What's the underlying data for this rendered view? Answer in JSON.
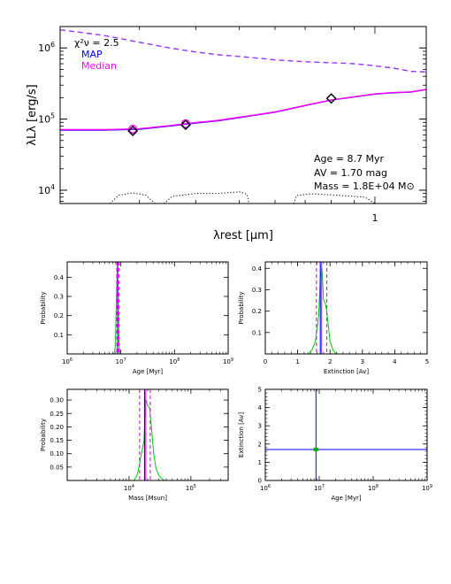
{
  "chart_data": [
    {
      "type": "line",
      "xscale": "log",
      "yscale": "log",
      "xlabel": "λrest [μm]",
      "ylabel": "λLλ [erg/s]",
      "xlim": [
        0.2,
        1.3
      ],
      "ylim": [
        6500,
        2000000
      ],
      "xtick_labels": [
        "1"
      ],
      "ytick_labels": [
        "10^4",
        "10^5",
        "10^6"
      ],
      "legend": {
        "chi2": "χ²ν = 2.5",
        "map_label": "MAP",
        "median_label": "Median"
      },
      "annotations": {
        "age": "Age = 8.7 Myr",
        "av": "AV = 1.70 mag",
        "mass": "Mass = 1.8E+04 M⊙"
      },
      "series": [
        {
          "name": "MAP",
          "color": "#0000ff",
          "style": "solid",
          "x": [
            0.2,
            0.25,
            0.3,
            0.35,
            0.4,
            0.45,
            0.5,
            0.55,
            0.6,
            0.7,
            0.8,
            0.9,
            1.0,
            1.1,
            1.2,
            1.3
          ],
          "y": [
            70000,
            70000,
            72000,
            80000,
            88000,
            95000,
            105000,
            115000,
            125000,
            155000,
            185000,
            205000,
            225000,
            235000,
            240000,
            260000
          ]
        },
        {
          "name": "Median",
          "color": "#ff00ff",
          "style": "solid",
          "x": [
            0.2,
            0.25,
            0.3,
            0.35,
            0.4,
            0.45,
            0.5,
            0.55,
            0.6,
            0.7,
            0.8,
            0.9,
            1.0,
            1.1,
            1.2,
            1.3
          ],
          "y": [
            71000,
            71000,
            73000,
            81000,
            89000,
            96000,
            106000,
            116000,
            126000,
            156000,
            186000,
            206000,
            226000,
            236000,
            241000,
            261000
          ]
        },
        {
          "color": "#9933ff",
          "style": "dashed",
          "x": [
            0.2,
            0.25,
            0.3,
            0.35,
            0.4,
            0.45,
            0.5,
            0.55,
            0.6,
            0.7,
            0.8,
            0.9,
            1.0,
            1.1,
            1.2,
            1.3
          ],
          "y": [
            1800000,
            1500000,
            1200000,
            1000000,
            880000,
            800000,
            760000,
            720000,
            680000,
            640000,
            620000,
            600000,
            560000,
            520000,
            470000,
            460000
          ]
        },
        {
          "color": "#000000",
          "style": "dotted",
          "segments": [
            {
              "x": [
                0.258,
                0.27,
                0.29,
                0.31,
                0.325
              ],
              "y": [
                6500,
                8500,
                9200,
                8500,
                6500
              ]
            },
            {
              "x": [
                0.34,
                0.355,
                0.4,
                0.45,
                0.5,
                0.52,
                0.525
              ],
              "y": [
                6500,
                8200,
                9000,
                9000,
                9500,
                8800,
                6500
              ]
            },
            {
              "x": [
                0.66,
                0.67,
                0.72,
                0.8,
                0.95,
                1.0
              ],
              "y": [
                6500,
                8400,
                8900,
                8600,
                8000,
                6500
              ]
            }
          ]
        }
      ],
      "points": [
        {
          "x": 0.29,
          "y": 72000,
          "marker": "circle",
          "color": "#ff00ff"
        },
        {
          "x": 0.29,
          "y": 68000,
          "marker": "diamond",
          "color": "#000000"
        },
        {
          "x": 0.38,
          "y": 86000,
          "marker": "circle",
          "color": "#ff00ff"
        },
        {
          "x": 0.38,
          "y": 83000,
          "marker": "diamond",
          "color": "#000000"
        },
        {
          "x": 0.8,
          "y": 195000,
          "marker": "diamond",
          "color": "#000000"
        }
      ]
    },
    {
      "type": "line",
      "xscale": "log",
      "xlabel": "Age [Myr]",
      "ylabel": "Probability",
      "xlim": [
        1,
        1000
      ],
      "ylim": [
        0,
        0.48
      ],
      "xtick_labels": [
        "10^6",
        "10^7",
        "10^8",
        "10^9"
      ],
      "ytick_labels": [
        "0.1",
        "0.2",
        "0.3",
        "0.4"
      ],
      "series": [
        {
          "color": "#00cc00",
          "x": [
            7.4,
            7.8,
            8.0,
            8.3,
            8.6,
            9.0,
            9.2,
            9.6,
            10.0
          ],
          "y": [
            0,
            0.02,
            0.12,
            0.32,
            0.46,
            0.28,
            0.06,
            0.005,
            0
          ]
        }
      ],
      "vlines": [
        {
          "x": 8.4,
          "color": "#ff00ff",
          "style": "dashed"
        },
        {
          "x": 9.2,
          "color": "#ff00ff",
          "style": "dashed"
        },
        {
          "x": 8.7,
          "color": "#0000ff",
          "style": "solid"
        },
        {
          "x": 8.8,
          "color": "#ff00ff",
          "style": "solid"
        }
      ]
    },
    {
      "type": "line",
      "xlabel": "Extinction [Av]",
      "ylabel": "Probability",
      "xlim": [
        0,
        5
      ],
      "ylim": [
        0,
        0.43
      ],
      "xtick_labels": [
        "0",
        "1",
        "2",
        "3",
        "4",
        "5"
      ],
      "ytick_labels": [
        "0.1",
        "0.2",
        "0.3",
        "0.4"
      ],
      "series": [
        {
          "color": "#00cc00",
          "x": [
            1.3,
            1.45,
            1.55,
            1.6,
            1.65,
            1.7,
            1.75,
            1.8,
            1.85,
            1.9,
            2.0,
            2.1,
            2.2
          ],
          "y": [
            0,
            0.02,
            0.06,
            0.12,
            0.18,
            0.36,
            0.4,
            0.25,
            0.24,
            0.2,
            0.06,
            0.015,
            0
          ]
        }
      ],
      "vlines": [
        {
          "x": 1.58,
          "color": "#ff00ff",
          "style": "dashed"
        },
        {
          "x": 1.9,
          "color": "#ff00ff",
          "style": "dashed"
        },
        {
          "x": 1.7,
          "color": "#0000ff",
          "style": "solid"
        },
        {
          "x": 1.74,
          "color": "#ff00ff",
          "style": "solid"
        }
      ]
    },
    {
      "type": "line",
      "xscale": "log",
      "xlabel": "Mass [Msun]",
      "ylabel": "Probability",
      "xlim": [
        1000,
        400000
      ],
      "ylim": [
        0,
        0.34
      ],
      "xtick_labels": [
        "10^4",
        "10^5"
      ],
      "ytick_labels": [
        "0.05",
        "0.10",
        "0.15",
        "0.20",
        "0.25",
        "0.30"
      ],
      "series": [
        {
          "color": "#00cc00",
          "x": [
            12000,
            13500,
            14500,
            15500,
            16500,
            17500,
            18000,
            18500,
            19000,
            20000,
            21500,
            23000,
            25000,
            27000,
            30000,
            33000,
            37000
          ],
          "y": [
            0,
            0.02,
            0.05,
            0.09,
            0.12,
            0.15,
            0.23,
            0.3,
            0.3,
            0.28,
            0.27,
            0.2,
            0.1,
            0.05,
            0.02,
            0.01,
            0
          ]
        }
      ],
      "vlines": [
        {
          "x": 14800,
          "color": "#ff00ff",
          "style": "dashed"
        },
        {
          "x": 22000,
          "color": "#ff00ff",
          "style": "dashed"
        },
        {
          "x": 17800,
          "color": "#0000ff",
          "style": "solid"
        },
        {
          "x": 18600,
          "color": "#ff00ff",
          "style": "solid"
        }
      ]
    },
    {
      "type": "scatter",
      "xscale": "log",
      "xlabel": "Age [Myr]",
      "ylabel": "Extinction [Av]",
      "xlim": [
        1,
        1000
      ],
      "ylim": [
        0,
        5
      ],
      "xtick_labels": [
        "10^6",
        "10^7",
        "10^8",
        "10^9"
      ],
      "ytick_labels": [
        "0",
        "1",
        "2",
        "3",
        "4",
        "5"
      ],
      "crosshair": {
        "x": 8.7,
        "y": 1.7,
        "color": "#0000ff"
      },
      "points": [
        {
          "x": 8.7,
          "y": 1.7,
          "color": "#00aa00"
        }
      ]
    }
  ]
}
